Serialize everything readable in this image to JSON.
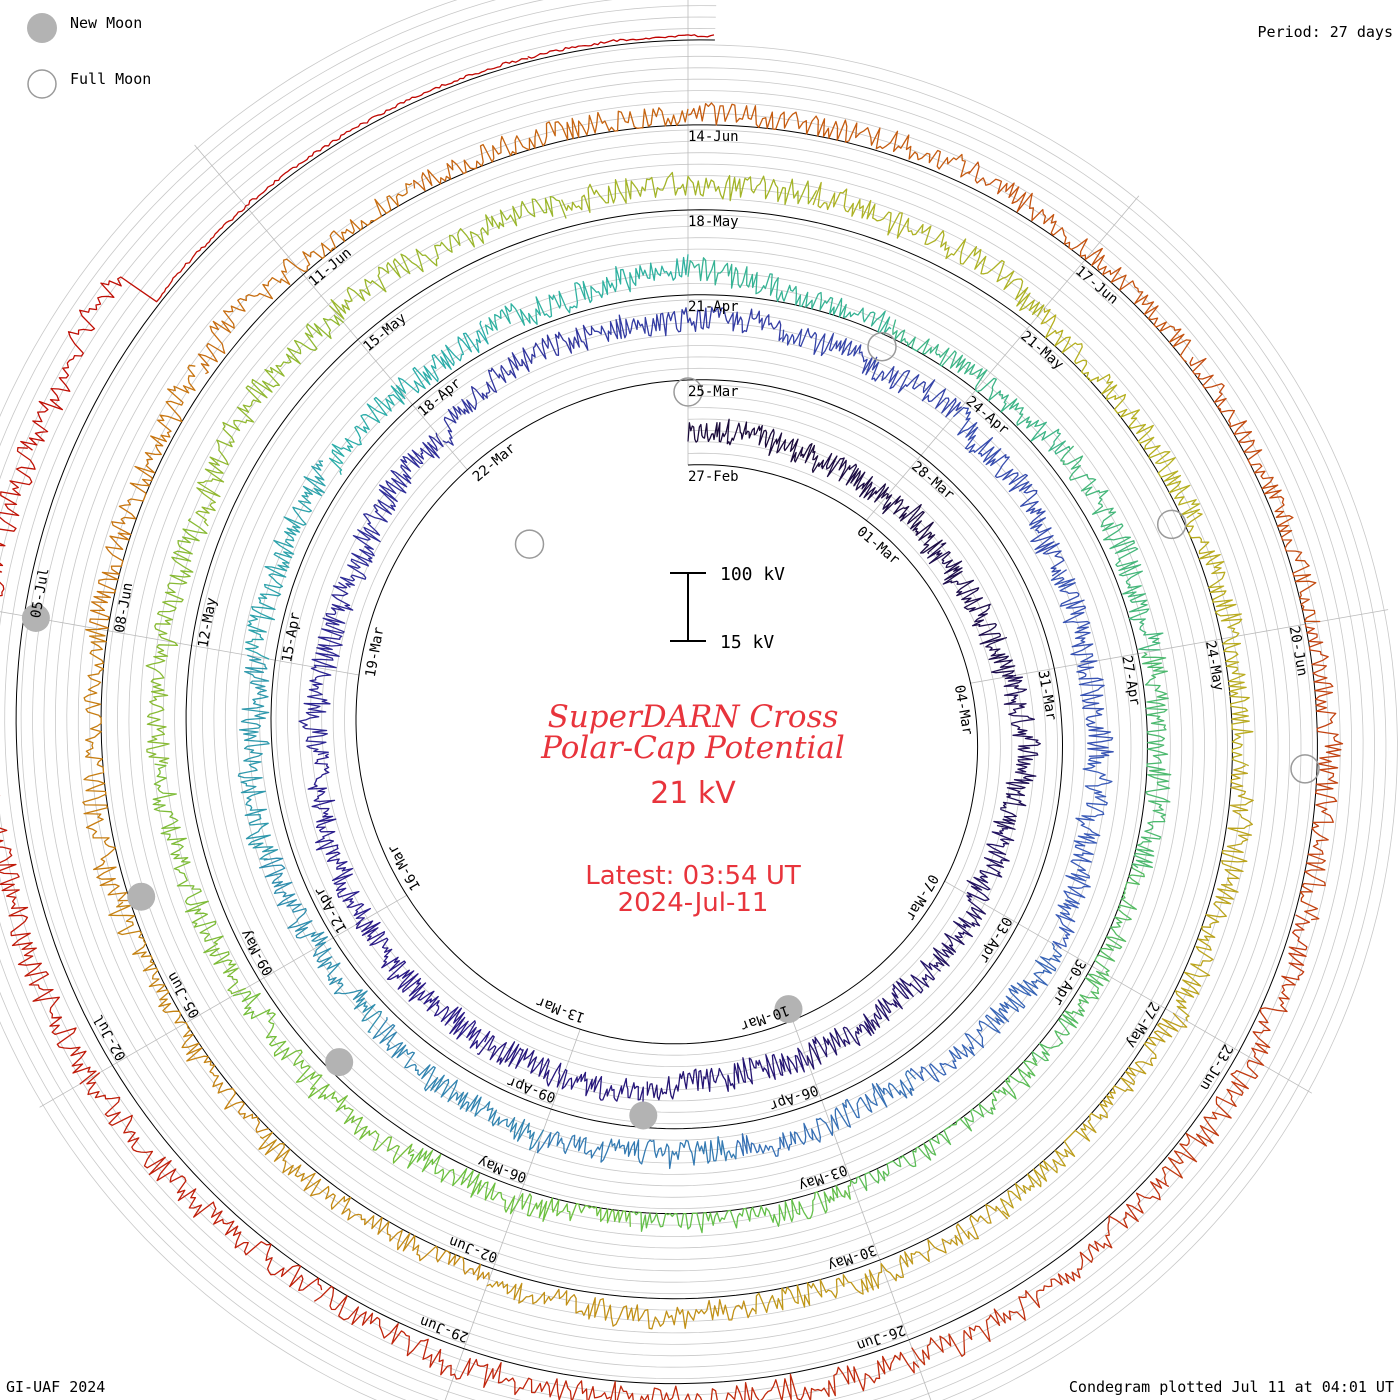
{
  "header": {
    "period_label": "Period: 27 days",
    "credit": "GI-UAF 2024",
    "plotted_label": "Condegram plotted Jul 11 at 04:01 UT"
  },
  "legend": {
    "new_moon_label": "New Moon",
    "full_moon_label": "Full Moon",
    "new_moon_color": "#b3b3b3",
    "full_moon_color": "#9a9a9a"
  },
  "center": {
    "title_line1": "SuperDARN Cross",
    "title_line2": "Polar-Cap Potential",
    "current_value": "21 kV",
    "latest_line1": "Latest: 03:54 UT",
    "latest_line2": "2024-Jul-11",
    "text_color": "#e8343c",
    "scale_top": "100 kV",
    "scale_bottom": "15 kV"
  },
  "chart_data": {
    "type": "line",
    "title": "SuperDARN Cross Polar-Cap Potential",
    "period_days": 27,
    "value_range_kv": [
      15,
      100
    ],
    "start_date": "2024-02-27",
    "end_date": "2024-07-11",
    "turns": 5,
    "date_labels": [
      "27-Feb",
      "01-Mar",
      "04-Mar",
      "07-Mar",
      "10-Mar",
      "13-Mar",
      "16-Mar",
      "19-Mar",
      "22-Mar",
      "25-Mar",
      "28-Mar",
      "31-Mar",
      "03-Apr",
      "06-Apr",
      "09-Apr",
      "12-Apr",
      "15-Apr",
      "18-Apr",
      "21-Apr",
      "24-Apr",
      "27-Apr",
      "30-Apr",
      "03-May",
      "06-May",
      "09-May",
      "12-May",
      "15-May",
      "18-May",
      "21-May",
      "24-May",
      "27-May",
      "30-May",
      "02-Jun",
      "05-Jun",
      "08-Jun",
      "11-Jun",
      "14-Jun",
      "17-Jun",
      "20-Jun",
      "23-Jun",
      "26-Jun",
      "29-Jun",
      "02-Jul",
      "05-Jul"
    ],
    "new_moons": [
      "2024-03-10",
      "2024-04-08",
      "2024-05-08",
      "2024-06-06",
      "2024-07-05"
    ],
    "full_moons": [
      "2024-02-24",
      "2024-03-25",
      "2024-04-23",
      "2024-05-23",
      "2024-06-21"
    ],
    "color_gradient": [
      "#1a0a3a",
      "#2a1a8a",
      "#3a5ab8",
      "#2ab0a8",
      "#6ac040",
      "#b8b020",
      "#c87810",
      "#c03010",
      "#c00000"
    ]
  }
}
